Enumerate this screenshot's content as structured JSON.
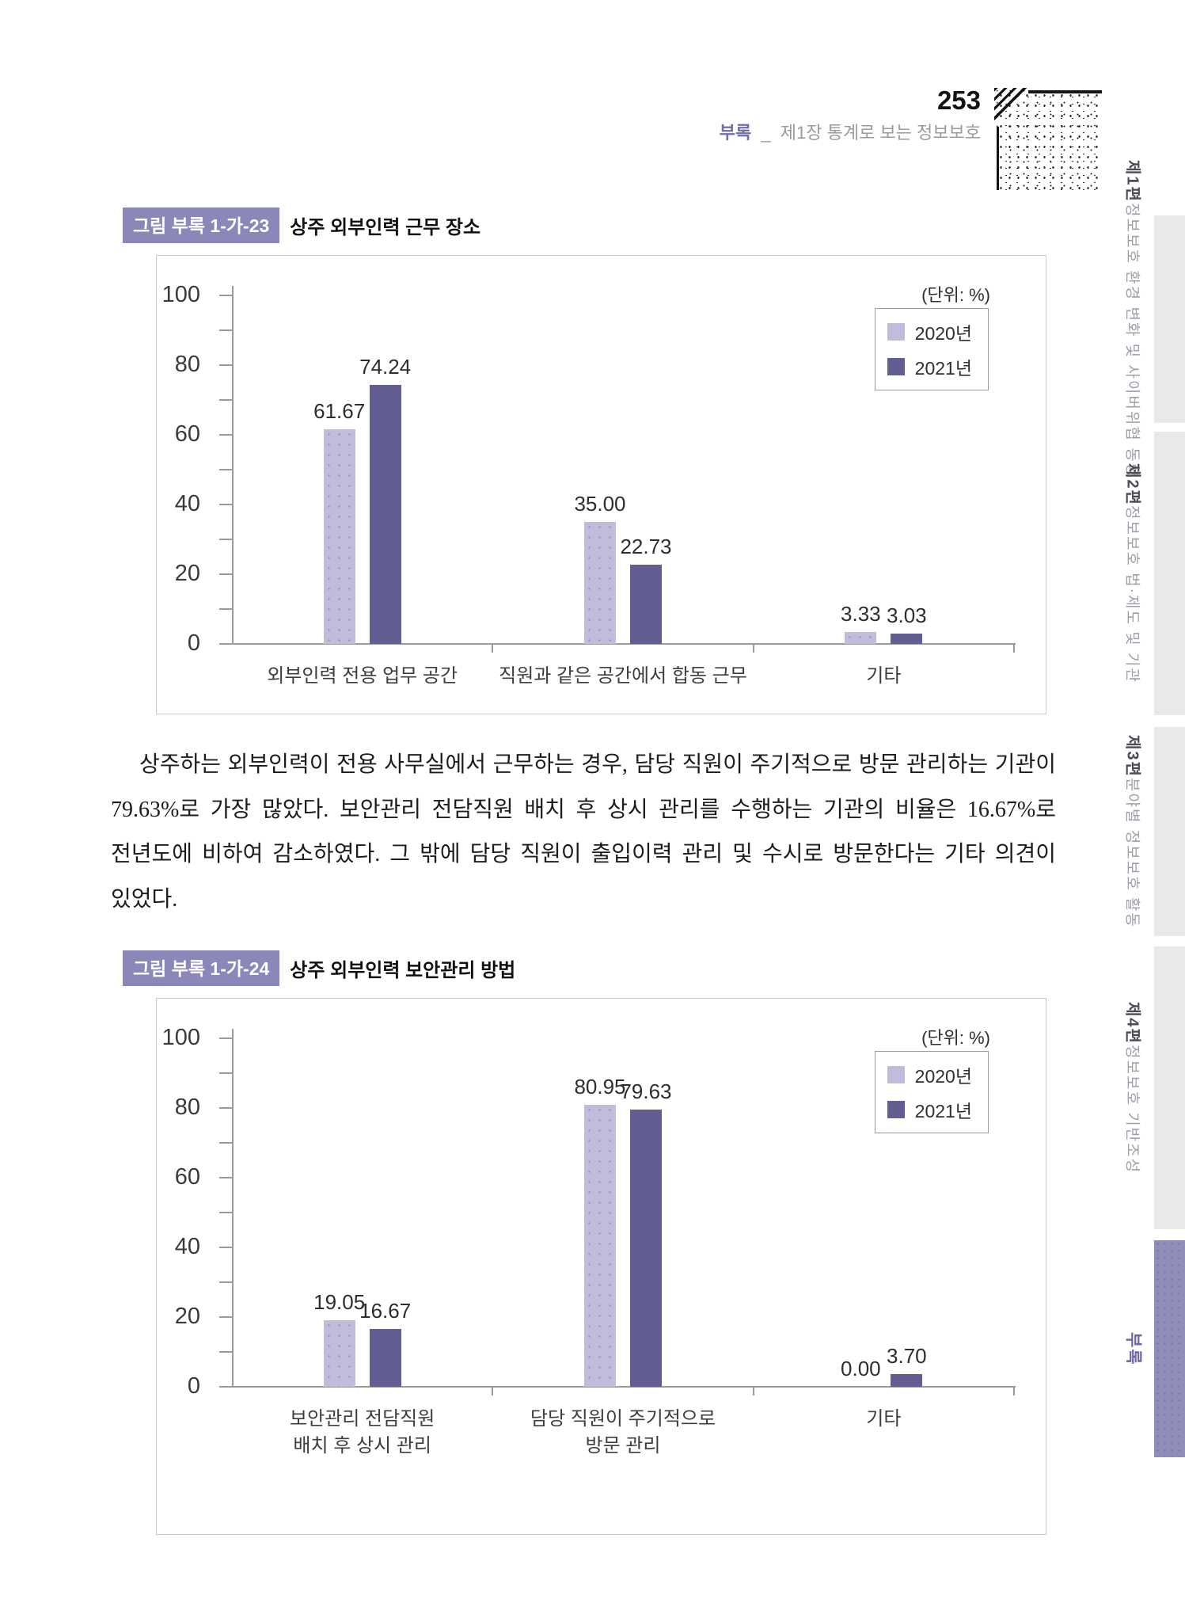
{
  "header": {
    "page_number": "253",
    "breadcrumb": {
      "section": "부록",
      "separator": "_",
      "chapter": "제1장 통계로 보는 정보보호"
    }
  },
  "sidebar": {
    "tabs": [
      {
        "part": "제1편",
        "title": "정보보호 환경 변화 및 사이버위협 동향",
        "active": false
      },
      {
        "part": "제2편",
        "title": "정보보호 법·제도 및 기관",
        "active": false
      },
      {
        "part": "제3편",
        "title": "분야별 정보보호 활동",
        "active": false
      },
      {
        "part": "제4편",
        "title": "정보보호 기반조성",
        "active": false
      },
      {
        "part": "부록",
        "title": "",
        "active": true
      }
    ]
  },
  "figures": [
    {
      "badge": "그림 부록 1-가-23",
      "title": "상주 외부인력 근무 장소"
    },
    {
      "badge": "그림 부록 1-가-24",
      "title": "상주 외부인력 보안관리 방법"
    }
  ],
  "paragraph": "상주하는 외부인력이 전용 사무실에서 근무하는 경우, 담당 직원이 주기적으로 방문 관리하는 기관이 79.63%로 가장 많았다. 보안관리 전담직원 배치 후 상시 관리를 수행하는 기관의 비율은 16.67%로 전년도에 비하여 감소하였다. 그 밖에 담당 직원이 출입이력 관리 및 수시로 방문한다는 기타 의견이 있었다.",
  "chart_data": [
    {
      "type": "bar",
      "title": "상주 외부인력 근무 장소",
      "unit_label": "(단위: %)",
      "categories": [
        "외부인력 전용 업무 공간",
        "직원과 같은 공간에서 합동 근무",
        "기타"
      ],
      "series": [
        {
          "name": "2020년",
          "color": "#c0bcdb",
          "values": [
            61.67,
            35.0,
            3.33
          ],
          "labels": [
            "61.67",
            "35.00",
            "3.33"
          ]
        },
        {
          "name": "2021년",
          "color": "#635e91",
          "values": [
            74.24,
            22.73,
            3.03
          ],
          "labels": [
            "74.24",
            "22.73",
            "3.03"
          ]
        }
      ],
      "ylim": [
        0,
        100
      ],
      "yticks": [
        0,
        20,
        40,
        60,
        80,
        100
      ],
      "ytick_minor_step": 10,
      "grid": false,
      "legend_position": "top-right"
    },
    {
      "type": "bar",
      "title": "상주 외부인력 보안관리 방법",
      "unit_label": "(단위: %)",
      "categories": [
        "보안관리 전담직원\n배치 후 상시 관리",
        "담당 직원이 주기적으로\n방문 관리",
        "기타"
      ],
      "series": [
        {
          "name": "2020년",
          "color": "#c0bcdb",
          "values": [
            19.05,
            80.95,
            0.0
          ],
          "labels": [
            "19.05",
            "80.95",
            "0.00"
          ]
        },
        {
          "name": "2021년",
          "color": "#635e91",
          "values": [
            16.67,
            79.63,
            3.7
          ],
          "labels": [
            "16.67",
            "79.63",
            "3.70"
          ]
        }
      ],
      "ylim": [
        0,
        100
      ],
      "yticks": [
        0,
        20,
        40,
        60,
        80,
        100
      ],
      "ytick_minor_step": 10,
      "grid": false,
      "legend_position": "top-right"
    }
  ]
}
